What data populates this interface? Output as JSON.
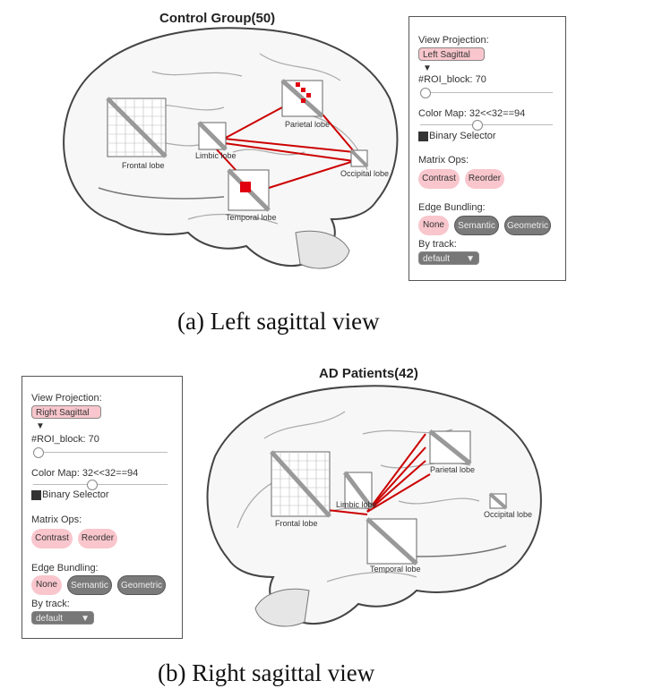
{
  "top": {
    "title": "Control Group(50)",
    "regions": {
      "frontal": "Frontal lobe",
      "limbic": "Limbic lobe",
      "parietal": "Parietal lobe",
      "temporal": "Temporal lobe",
      "occipital": "Occipital lobe"
    },
    "panel": {
      "view_projection_label": "View Projection:",
      "view_projection_value": "Left Sagittal",
      "roi_block_label": "#ROI_block: 70",
      "roi_block_value": 0.0,
      "color_map_label": "Color Map: 32<<32==94",
      "color_map_value": 0.45,
      "binary_selector_label": "Binary Selector",
      "matrix_ops_label": "Matrix Ops:",
      "matrix_ops": [
        "Contrast",
        "Reorder"
      ],
      "edge_bundling_label": "Edge Bundling:",
      "edge_bundling": [
        "None",
        "Semantic",
        "Geometric"
      ],
      "by_track_label": "By track:",
      "by_track_value": "default"
    },
    "caption": "(a) Left sagittal view"
  },
  "bottom": {
    "title": "AD Patients(42)",
    "regions": {
      "frontal": "Frontal lobe",
      "limbic": "Limbic lobe",
      "parietal": "Parietal lobe",
      "temporal": "Temporal lobe",
      "occipital": "Occipital lobe"
    },
    "panel": {
      "view_projection_label": "View Projection:",
      "view_projection_value": "Right Sagittal",
      "roi_block_label": "#ROI_block: 70",
      "roi_block_value": 0.0,
      "color_map_label": "Color Map: 32<<32==94",
      "color_map_value": 0.45,
      "binary_selector_label": "Binary Selector",
      "matrix_ops_label": "Matrix Ops:",
      "matrix_ops": [
        "Contrast",
        "Reorder"
      ],
      "edge_bundling_label": "Edge Bundling:",
      "edge_bundling": [
        "None",
        "Semantic",
        "Geometric"
      ],
      "by_track_label": "By track:",
      "by_track_value": "default"
    },
    "caption": "(b) Right sagittal view"
  },
  "colors": {
    "edge": "#cc0000",
    "highlight": "#e0000f",
    "pill_pink": "#f8c6cc",
    "pill_grey": "#7a7a7a"
  }
}
